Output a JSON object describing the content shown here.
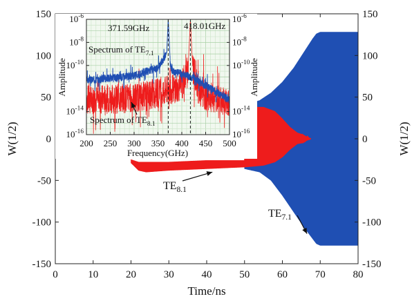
{
  "chart_data": [
    {
      "type": "line",
      "xlabel": "Time/ns",
      "ylabel_left": "W(1/2)",
      "ylabel_right": "W(1/2)",
      "xlim": [
        0,
        80
      ],
      "ylim": [
        -150,
        150
      ],
      "x_ticks": [
        0,
        10,
        20,
        30,
        40,
        50,
        60,
        70,
        80
      ],
      "y_ticks": [
        -150,
        -100,
        -50,
        0,
        50,
        100,
        150
      ],
      "series": [
        {
          "name": "TE8.1",
          "color": "#ee1c1c",
          "envelope": [
            {
              "t": 20.0,
              "upper": -25,
              "lower": -29
            },
            {
              "t": 22.0,
              "upper": -28,
              "lower": -38
            },
            {
              "t": 24.0,
              "upper": -28,
              "lower": -40
            },
            {
              "t": 30.0,
              "upper": -28,
              "lower": -38
            },
            {
              "t": 40.0,
              "upper": -26,
              "lower": -36
            },
            {
              "t": 50.0,
              "upper": -26,
              "lower": -34
            },
            {
              "t": 50.2,
              "upper": 38,
              "lower": -34
            },
            {
              "t": 55.0,
              "upper": 38,
              "lower": -32
            },
            {
              "t": 58.0,
              "upper": 33,
              "lower": -28
            },
            {
              "t": 60.0,
              "upper": 24,
              "lower": -22
            },
            {
              "t": 62.0,
              "upper": 14,
              "lower": -13
            },
            {
              "t": 64.0,
              "upper": 7,
              "lower": -6
            },
            {
              "t": 65.5,
              "upper": 5,
              "lower": -5
            },
            {
              "t": 66.5,
              "upper": 2,
              "lower": -2
            },
            {
              "t": 67.5,
              "upper": 0.5,
              "lower": -0.5
            }
          ]
        },
        {
          "name": "TE7.1",
          "color": "#1f4fb3",
          "envelope": [
            {
              "t": 50.0,
              "upper": 40,
              "lower": -36
            },
            {
              "t": 54.0,
              "upper": 46,
              "lower": -40
            },
            {
              "t": 57.0,
              "upper": 55,
              "lower": -50
            },
            {
              "t": 60.0,
              "upper": 68,
              "lower": -68
            },
            {
              "t": 63.0,
              "upper": 85,
              "lower": -88
            },
            {
              "t": 66.0,
              "upper": 106,
              "lower": -108
            },
            {
              "t": 68.0,
              "upper": 120,
              "lower": -120
            },
            {
              "t": 69.0,
              "upper": 126,
              "lower": -126
            },
            {
              "t": 70.0,
              "upper": 128,
              "lower": -128
            },
            {
              "t": 80.0,
              "upper": 128,
              "lower": -128
            }
          ]
        }
      ],
      "annotations": [
        {
          "text": "TE",
          "subscript": "8.1",
          "target": {
            "t": 41.5,
            "w": -40
          }
        },
        {
          "text": "TE",
          "subscript": "7.1",
          "target": {
            "t": 66.5,
            "w": -114
          }
        }
      ]
    },
    {
      "type": "line",
      "xlabel": "Frequency(GHz)",
      "ylabel_left": "Amplitude",
      "ylabel_right": "Amplitude",
      "xlim": [
        200,
        500
      ],
      "y_scale": "log",
      "ylim_exp": [
        -16,
        -6
      ],
      "x_ticks": [
        200,
        250,
        300,
        350,
        400,
        450,
        500
      ],
      "y_tick_exps": [
        -16,
        -14,
        -10,
        -8,
        -6
      ],
      "grid": true,
      "peaks": [
        {
          "freq": 371.59,
          "label": "371.59GHz",
          "series": "TE7.1",
          "amplitude_exp": -6
        },
        {
          "freq": 418.01,
          "label": "418.01GHz",
          "series": "TE8.1",
          "amplitude_exp": -6
        }
      ],
      "series": [
        {
          "name": "TE7.1",
          "color": "#1f4fb3",
          "baseline": [
            {
              "f": 200,
              "exp": -11.3
            },
            {
              "f": 300,
              "exp": -10.9
            },
            {
              "f": 350,
              "exp": -10.2
            },
            {
              "f": 368,
              "exp": -9.0
            },
            {
              "f": 380,
              "exp": -10.5
            },
            {
              "f": 420,
              "exp": -11.0
            },
            {
              "f": 500,
              "exp": -13.0
            }
          ]
        },
        {
          "name": "TE8.1",
          "color": "#ee1c1c",
          "baseline": [
            {
              "f": 200,
              "exp": -13.0
            },
            {
              "f": 300,
              "exp": -12.8
            },
            {
              "f": 360,
              "exp": -12.3
            },
            {
              "f": 400,
              "exp": -11.8
            },
            {
              "f": 418,
              "exp": -9.5
            },
            {
              "f": 440,
              "exp": -12.5
            },
            {
              "f": 500,
              "exp": -13.3
            }
          ]
        }
      ],
      "annotations": [
        {
          "text": "Spectrum of TE",
          "subscript": "7.1"
        },
        {
          "text": "Spectrum of TE",
          "subscript": "8.1"
        }
      ]
    }
  ]
}
